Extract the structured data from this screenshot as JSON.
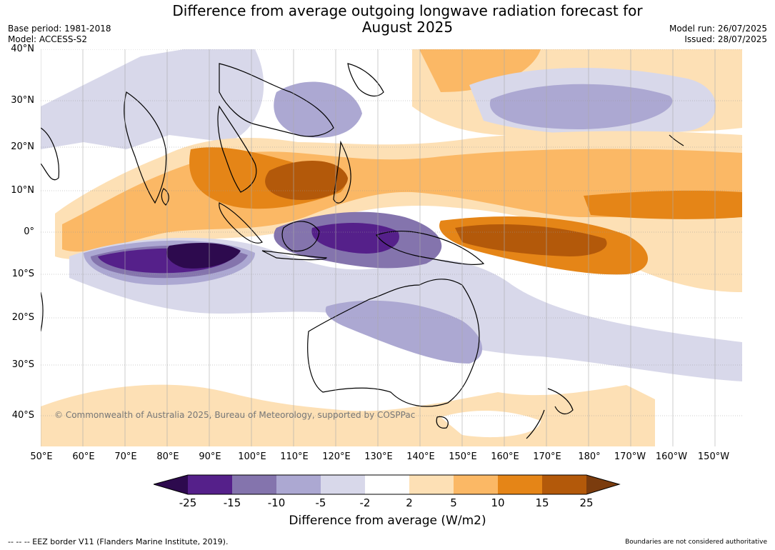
{
  "title": {
    "line1": "Difference from average outgoing longwave radiation forecast for",
    "line2": "August 2025"
  },
  "meta": {
    "base_period": "Base period: 1981-2018",
    "model": "Model: ACCESS-S2",
    "model_run": "Model run: 26/07/2025",
    "issued": "Issued: 28/07/2025"
  },
  "map": {
    "lat_labels": [
      "40°N",
      "30°N",
      "20°N",
      "10°N",
      "0°",
      "10°S",
      "20°S",
      "30°S",
      "40°S"
    ],
    "lon_labels": [
      "50°E",
      "60°E",
      "70°E",
      "80°E",
      "90°E",
      "100°E",
      "110°E",
      "120°E",
      "130°E",
      "140°E",
      "150°E",
      "160°E",
      "170°E",
      "180°",
      "170°W",
      "160°W",
      "150°W"
    ],
    "copyright": "© Commonwealth of Australia 2025, Bureau of Meteorology, supported by COSPPac",
    "colors": {
      "neg25": "#2d0a4e",
      "neg15": "#55208a",
      "neg10": "#8474ad",
      "neg5": "#aca8d2",
      "neg2": "#d8d8ea",
      "zero": "#ffffff",
      "pos2": "#fde0b5",
      "pos5": "#fbb865",
      "pos10": "#e58517",
      "pos15": "#b3590a",
      "pos25": "#7b3c0e",
      "land": "#000000"
    }
  },
  "colorbar": {
    "ticks": [
      "-25",
      "-15",
      "-10",
      "-5",
      "-2",
      "2",
      "5",
      "10",
      "15",
      "25"
    ],
    "label": "Difference from average (W/m2)"
  },
  "footer": {
    "eez": "--  --  -- EEZ border V11 (Flanders Marine Institute, 2019).",
    "note": "Boundaries are not considered authoritative"
  }
}
